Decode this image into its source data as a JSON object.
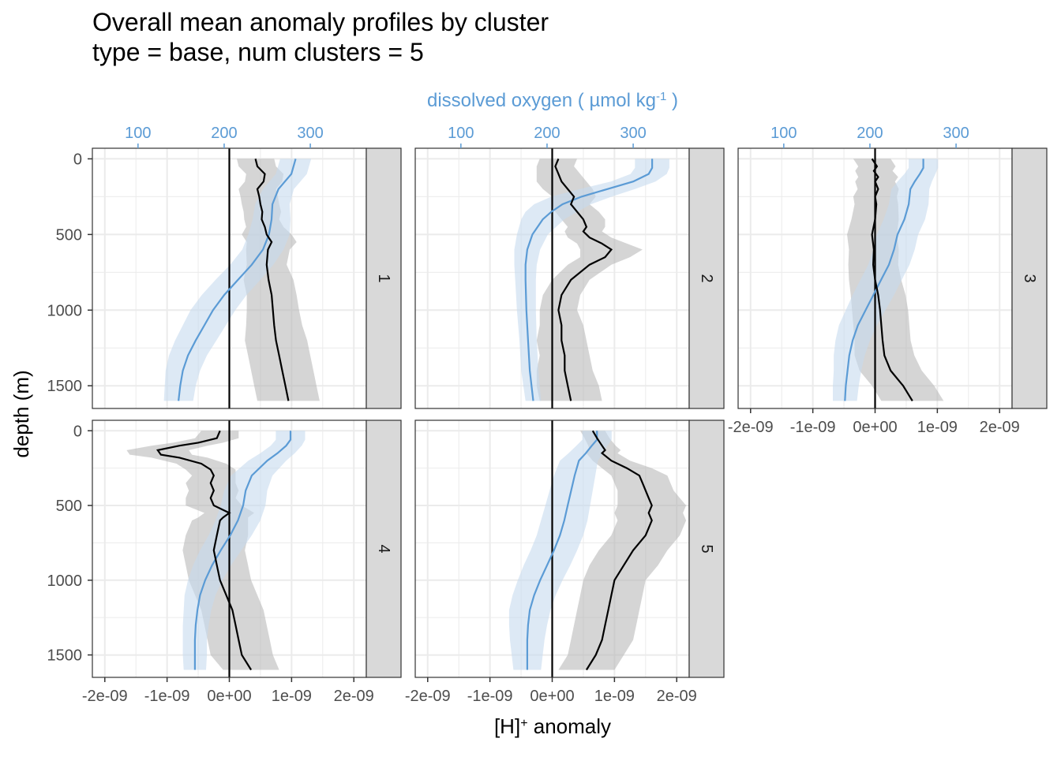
{
  "title_line1": "Overall mean anomaly profiles by cluster",
  "title_line2": "type = base, num clusters = 5",
  "chart_data": {
    "type": "line",
    "layout": "facet_wrap",
    "x_label_main": "[H]",
    "x_label_sup": "+",
    "x_label_rest": " anomaly",
    "y_label": "depth (m)",
    "top_label_main": "dissolved oxygen ( µmol kg",
    "top_label_sup": "-1",
    "top_label_end": " )",
    "x_ticks": [
      -2e-09,
      -1e-09,
      0,
      1e-09,
      2e-09
    ],
    "x_tick_labels": [
      "-2e-09",
      "-1e-09",
      "0e+00",
      "1e-09",
      "2e-09"
    ],
    "xlim": [
      -2.2e-09,
      2.2e-09
    ],
    "y_ticks": [
      0,
      500,
      1000,
      1500
    ],
    "y_tick_labels": [
      "0",
      "500",
      "1000",
      "1500"
    ],
    "ylim": [
      1650,
      -70
    ],
    "top_ticks": [
      100,
      200,
      300
    ],
    "top_tick_labels": [
      "100",
      "200",
      "300"
    ],
    "top_lim": [
      47,
      365
    ],
    "colors": {
      "h_line": "#000000",
      "h_band": "#b3b3b3",
      "oxy_line": "#5b9bd5",
      "oxy_band": "#c6dbef",
      "strip_bg": "#d9d9d9",
      "grid": "#ebebeb",
      "zero_line": "#000000"
    },
    "panels": [
      {
        "label": "1",
        "h_anomaly": [
          [
            0,
            4.2e-10
          ],
          [
            50,
            4.5e-10
          ],
          [
            100,
            5.7e-10
          ],
          [
            150,
            5.5e-10
          ],
          [
            200,
            4.5e-10
          ],
          [
            250,
            4.8e-10
          ],
          [
            300,
            5e-10
          ],
          [
            350,
            5.3e-10
          ],
          [
            400,
            5.2e-10
          ],
          [
            450,
            5.7e-10
          ],
          [
            500,
            6e-10
          ],
          [
            550,
            6.8e-10
          ],
          [
            600,
            6.2e-10
          ],
          [
            700,
            6e-10
          ],
          [
            800,
            6.3e-10
          ],
          [
            900,
            6.8e-10
          ],
          [
            1000,
            7e-10
          ],
          [
            1100,
            7.2e-10
          ],
          [
            1200,
            7.5e-10
          ],
          [
            1300,
            8e-10
          ],
          [
            1400,
            8.5e-10
          ],
          [
            1500,
            9e-10
          ],
          [
            1600,
            9.5e-10
          ]
        ],
        "h_spread": [
          3e-10,
          3e-10,
          3e-10,
          3e-10,
          3e-10,
          3e-10,
          3e-10,
          3e-10,
          2.8e-10,
          3e-10,
          4e-10,
          4e-10,
          3.5e-10,
          3.2e-10,
          4e-10,
          4e-10,
          4.2e-10,
          4.5e-10,
          5e-10,
          5e-10,
          5e-10,
          5e-10,
          5e-10
        ],
        "oxygen": [
          [
            0,
            283
          ],
          [
            100,
            278
          ],
          [
            200,
            263
          ],
          [
            300,
            256
          ],
          [
            400,
            255
          ],
          [
            500,
            252
          ],
          [
            600,
            245
          ],
          [
            700,
            232
          ],
          [
            800,
            216
          ],
          [
            900,
            200
          ],
          [
            1000,
            187
          ],
          [
            1100,
            177
          ],
          [
            1200,
            167
          ],
          [
            1300,
            158
          ],
          [
            1400,
            152
          ],
          [
            1500,
            149
          ],
          [
            1600,
            147
          ]
        ],
        "oxy_spread": [
          18,
          18,
          18,
          20,
          22,
          24,
          24,
          25,
          26,
          26,
          26,
          25,
          24,
          22,
          20,
          18,
          17
        ]
      },
      {
        "label": "2",
        "h_anomaly": [
          [
            0,
            1e-10
          ],
          [
            50,
            5e-11
          ],
          [
            100,
            1e-10
          ],
          [
            150,
            1.5e-10
          ],
          [
            200,
            2.5e-10
          ],
          [
            250,
            3.5e-10
          ],
          [
            300,
            3e-10
          ],
          [
            350,
            4e-10
          ],
          [
            400,
            5e-10
          ],
          [
            450,
            5.5e-10
          ],
          [
            480,
            5e-10
          ],
          [
            520,
            6e-10
          ],
          [
            560,
            8e-10
          ],
          [
            600,
            9.5e-10
          ],
          [
            650,
            8.5e-10
          ],
          [
            700,
            6e-10
          ],
          [
            800,
            3e-10
          ],
          [
            900,
            1.5e-10
          ],
          [
            1000,
            1e-10
          ],
          [
            1100,
            1.5e-10
          ],
          [
            1200,
            1.5e-10
          ],
          [
            1300,
            2e-10
          ],
          [
            1400,
            2e-10
          ],
          [
            1500,
            2.5e-10
          ],
          [
            1600,
            3e-10
          ]
        ],
        "h_spread": [
          3e-10,
          3e-10,
          3.5e-10,
          4e-10,
          4e-10,
          3.5e-10,
          3e-10,
          3.5e-10,
          3.5e-10,
          3e-10,
          3e-10,
          3.5e-10,
          4e-10,
          5e-10,
          4e-10,
          3.5e-10,
          3e-10,
          3e-10,
          3e-10,
          3.5e-10,
          4e-10,
          4e-10,
          4.5e-10,
          5e-10,
          5e-10
        ],
        "oxygen": [
          [
            0,
            322
          ],
          [
            60,
            322
          ],
          [
            100,
            318
          ],
          [
            150,
            300
          ],
          [
            200,
            270
          ],
          [
            250,
            240
          ],
          [
            300,
            218
          ],
          [
            350,
            205
          ],
          [
            400,
            195
          ],
          [
            500,
            183
          ],
          [
            600,
            177
          ],
          [
            700,
            175
          ],
          [
            800,
            175
          ],
          [
            1000,
            176
          ],
          [
            1200,
            178
          ],
          [
            1400,
            180
          ],
          [
            1600,
            184
          ]
        ],
        "oxy_spread": [
          20,
          20,
          21,
          26,
          32,
          35,
          33,
          30,
          25,
          18,
          15,
          13,
          12,
          11,
          10,
          10,
          9
        ]
      },
      {
        "label": "3",
        "h_anomaly": [
          [
            0,
            -5e-11
          ],
          [
            50,
            3e-11
          ],
          [
            80,
            -2e-11
          ],
          [
            120,
            5e-11
          ],
          [
            150,
            0.0
          ],
          [
            200,
            5e-11
          ],
          [
            250,
            0.0
          ],
          [
            300,
            2e-11
          ],
          [
            400,
            0.0
          ],
          [
            500,
            -5e-11
          ],
          [
            600,
            -2e-11
          ],
          [
            700,
            -3e-11
          ],
          [
            800,
            0.0
          ],
          [
            900,
            5e-11
          ],
          [
            1000,
            8e-11
          ],
          [
            1100,
            1e-10
          ],
          [
            1200,
            1.2e-10
          ],
          [
            1300,
            1.5e-10
          ],
          [
            1400,
            2.5e-10
          ],
          [
            1500,
            4.5e-10
          ],
          [
            1600,
            6e-10
          ]
        ],
        "h_spread": [
          3e-10,
          3e-10,
          3e-10,
          3.2e-10,
          3.2e-10,
          3.3e-10,
          3.5e-10,
          3.5e-10,
          3.8e-10,
          4e-10,
          4e-10,
          4e-10,
          4.2e-10,
          4.4e-10,
          4.5e-10,
          4.5e-10,
          4.5e-10,
          4.8e-10,
          5e-10,
          5e-10,
          5e-10
        ],
        "oxygen": [
          [
            0,
            262
          ],
          [
            60,
            262
          ],
          [
            100,
            258
          ],
          [
            150,
            252
          ],
          [
            200,
            247
          ],
          [
            300,
            245
          ],
          [
            400,
            240
          ],
          [
            500,
            232
          ],
          [
            600,
            228
          ],
          [
            700,
            222
          ],
          [
            800,
            213
          ],
          [
            900,
            204
          ],
          [
            1000,
            195
          ],
          [
            1100,
            186
          ],
          [
            1200,
            180
          ],
          [
            1300,
            176
          ],
          [
            1400,
            174
          ],
          [
            1500,
            172
          ],
          [
            1600,
            171
          ]
        ],
        "oxy_spread": [
          17,
          17,
          18,
          20,
          22,
          23,
          24,
          24,
          24,
          24,
          24,
          24,
          23,
          22,
          20,
          18,
          16,
          15,
          14
        ]
      },
      {
        "label": "4",
        "h_anomaly": [
          [
            0,
            -1.5e-10
          ],
          [
            50,
            -2e-10
          ],
          [
            80,
            -5e-10
          ],
          [
            100,
            -8e-10
          ],
          [
            130,
            -1.15e-09
          ],
          [
            160,
            -1.1e-09
          ],
          [
            180,
            -8e-10
          ],
          [
            220,
            -4.5e-10
          ],
          [
            260,
            -3e-10
          ],
          [
            300,
            -2.5e-10
          ],
          [
            350,
            -3e-10
          ],
          [
            400,
            -2.5e-10
          ],
          [
            450,
            -3e-10
          ],
          [
            500,
            -2.5e-10
          ],
          [
            550,
            0.0
          ],
          [
            580,
            -1e-10
          ],
          [
            600,
            -1.5e-10
          ],
          [
            700,
            -2e-10
          ],
          [
            800,
            -2.5e-10
          ],
          [
            900,
            -2e-10
          ],
          [
            1000,
            -1.5e-10
          ],
          [
            1100,
            -5e-11
          ],
          [
            1200,
            5e-11
          ],
          [
            1300,
            1e-10
          ],
          [
            1400,
            1.5e-10
          ],
          [
            1500,
            2e-10
          ],
          [
            1600,
            3.5e-10
          ]
        ],
        "h_spread": [
          3e-10,
          3.5e-10,
          4e-10,
          4.5e-10,
          5e-10,
          5e-10,
          4.5e-10,
          4e-10,
          4e-10,
          3.5e-10,
          4e-10,
          4e-10,
          4e-10,
          4.5e-10,
          4e-10,
          4e-10,
          4.5e-10,
          5e-10,
          5e-10,
          5e-10,
          5e-10,
          5e-10,
          5e-10,
          5e-10,
          5e-10,
          5e-10,
          4.5e-10
        ],
        "oxygen": [
          [
            0,
            277
          ],
          [
            60,
            277
          ],
          [
            100,
            272
          ],
          [
            150,
            262
          ],
          [
            200,
            250
          ],
          [
            300,
            232
          ],
          [
            400,
            225
          ],
          [
            500,
            222
          ],
          [
            600,
            216
          ],
          [
            700,
            207
          ],
          [
            800,
            196
          ],
          [
            900,
            186
          ],
          [
            1000,
            178
          ],
          [
            1100,
            172
          ],
          [
            1200,
            169
          ],
          [
            1300,
            167
          ],
          [
            1400,
            166
          ],
          [
            1500,
            166
          ],
          [
            1600,
            166
          ]
        ],
        "oxy_spread": [
          17,
          17,
          18,
          20,
          22,
          24,
          25,
          26,
          26,
          25,
          24,
          22,
          20,
          18,
          16,
          15,
          14,
          14,
          13
        ]
      },
      {
        "label": "5",
        "h_anomaly": [
          [
            0,
            6.5e-10
          ],
          [
            50,
            7.2e-10
          ],
          [
            100,
            8e-10
          ],
          [
            130,
            8.5e-10
          ],
          [
            150,
            8e-10
          ],
          [
            200,
            9.5e-10
          ],
          [
            250,
            1.2e-09
          ],
          [
            300,
            1.4e-09
          ],
          [
            350,
            1.45e-09
          ],
          [
            400,
            1.5e-09
          ],
          [
            450,
            1.55e-09
          ],
          [
            500,
            1.6e-09
          ],
          [
            550,
            1.55e-09
          ],
          [
            600,
            1.6e-09
          ],
          [
            700,
            1.5e-09
          ],
          [
            800,
            1.3e-09
          ],
          [
            900,
            1.15e-09
          ],
          [
            1000,
            1e-09
          ],
          [
            1100,
            9.5e-10
          ],
          [
            1200,
            9e-10
          ],
          [
            1300,
            8.5e-10
          ],
          [
            1400,
            8e-10
          ],
          [
            1500,
            7e-10
          ],
          [
            1600,
            5.5e-10
          ]
        ],
        "h_spread": [
          2e-10,
          2e-10,
          2.2e-10,
          2.5e-10,
          2.5e-10,
          3e-10,
          4e-10,
          4.5e-10,
          4.5e-10,
          4.5e-10,
          5e-10,
          5.5e-10,
          5.5e-10,
          5.5e-10,
          5.5e-10,
          5.5e-10,
          5.5e-10,
          5e-10,
          5e-10,
          5e-10,
          5e-10,
          5e-10,
          4.5e-10,
          4.5e-10
        ],
        "oxygen": [
          [
            0,
            258
          ],
          [
            60,
            258
          ],
          [
            100,
            252
          ],
          [
            150,
            245
          ],
          [
            200,
            237
          ],
          [
            300,
            232
          ],
          [
            400,
            228
          ],
          [
            500,
            224
          ],
          [
            600,
            220
          ],
          [
            700,
            215
          ],
          [
            800,
            208
          ],
          [
            900,
            200
          ],
          [
            1000,
            192
          ],
          [
            1100,
            185
          ],
          [
            1200,
            180
          ],
          [
            1300,
            178
          ],
          [
            1400,
            177
          ],
          [
            1500,
            177
          ],
          [
            1600,
            177
          ]
        ],
        "oxy_spread": [
          17,
          17,
          18,
          20,
          22,
          24,
          25,
          26,
          27,
          27,
          27,
          27,
          26,
          25,
          24,
          22,
          20,
          18,
          16
        ]
      }
    ]
  }
}
